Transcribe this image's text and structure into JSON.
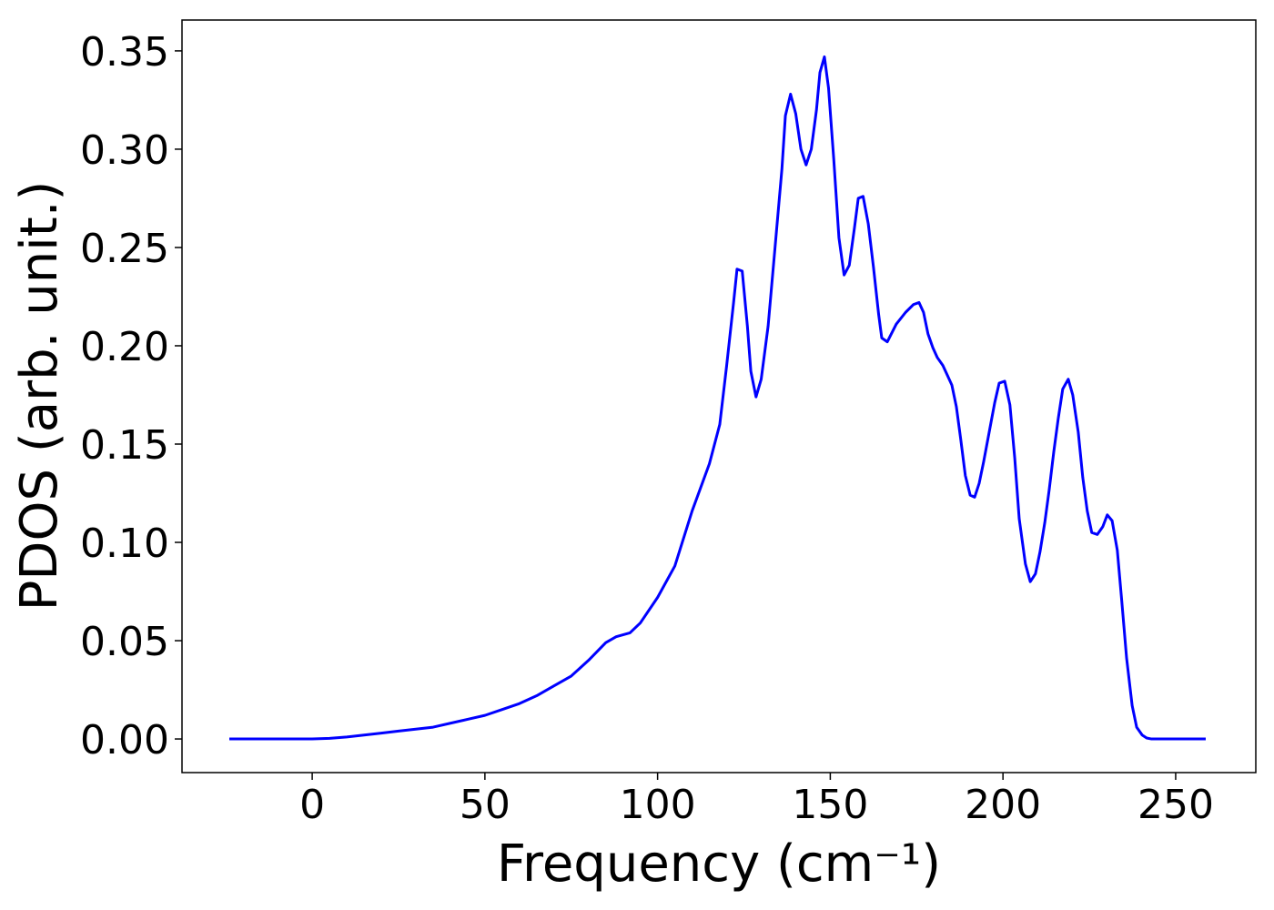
{
  "chart_data": {
    "type": "line",
    "x_label": "Frequency (cm⁻¹)",
    "y_label": "PDOS (arb. unit.)",
    "color": "#0000ff",
    "xlim": [
      -37.7,
      273.2
    ],
    "ylim": [
      -0.0171,
      0.3657
    ],
    "xticks": [
      0,
      50,
      100,
      150,
      200,
      250
    ],
    "yticks": [
      {
        "value": 0,
        "label": "0.00"
      },
      0.05,
      {
        "value": 0.1,
        "label": "0.10"
      },
      0.15,
      {
        "value": 0.2,
        "label": "0.20"
      },
      0.25,
      {
        "value": 0.3,
        "label": "0.30"
      },
      0.35
    ],
    "x": [
      -24,
      0,
      5,
      10,
      15,
      20,
      25,
      30,
      35,
      40,
      45,
      50,
      55,
      60,
      65,
      70,
      75,
      80,
      85,
      88,
      92,
      95,
      100,
      105,
      110,
      115,
      118,
      120,
      122,
      123,
      124.5,
      126,
      127,
      128.5,
      130,
      132,
      134,
      136,
      137,
      138.5,
      140,
      141.5,
      143,
      144.5,
      146,
      147,
      148.3,
      149.5,
      151,
      152.5,
      154,
      155.5,
      157,
      158.1,
      159.5,
      161,
      162.5,
      164,
      164.9,
      166.5,
      169.1,
      171.8,
      174.1,
      175.7,
      177,
      178.3,
      179.7,
      181,
      182.6,
      183.9,
      185.2,
      186.5,
      187.8,
      189.1,
      190.5,
      191.8,
      193.1,
      194.4,
      196,
      197.6,
      198.9,
      200.5,
      202,
      203.4,
      204.7,
      206.5,
      207.9,
      209.4,
      210.7,
      212.1,
      213.4,
      214.7,
      216,
      217.3,
      218.9,
      220.2,
      221.8,
      223.1,
      224.4,
      225.7,
      227.3,
      228.9,
      230.2,
      231.6,
      233.1,
      234.4,
      235.8,
      237.4,
      238.7,
      240.3,
      241.6,
      243,
      258.7
    ],
    "values": [
      0,
      0,
      0.0003,
      0.001,
      0.002,
      0.003,
      0.004,
      0.005,
      0.006,
      0.008,
      0.01,
      0.012,
      0.015,
      0.018,
      0.022,
      0.027,
      0.032,
      0.04,
      0.049,
      0.052,
      0.054,
      0.059,
      0.072,
      0.088,
      0.116,
      0.14,
      0.16,
      0.19,
      0.222,
      0.239,
      0.238,
      0.21,
      0.187,
      0.174,
      0.183,
      0.21,
      0.25,
      0.29,
      0.317,
      0.328,
      0.318,
      0.3,
      0.292,
      0.3,
      0.32,
      0.339,
      0.347,
      0.331,
      0.295,
      0.255,
      0.236,
      0.241,
      0.26,
      0.275,
      0.276,
      0.262,
      0.24,
      0.216,
      0.204,
      0.202,
      0.211,
      0.217,
      0.221,
      0.222,
      0.217,
      0.206,
      0.199,
      0.194,
      0.19,
      0.185,
      0.18,
      0.169,
      0.152,
      0.134,
      0.124,
      0.123,
      0.13,
      0.141,
      0.156,
      0.171,
      0.181,
      0.182,
      0.17,
      0.143,
      0.112,
      0.089,
      0.08,
      0.084,
      0.095,
      0.11,
      0.127,
      0.146,
      0.163,
      0.178,
      0.183,
      0.175,
      0.156,
      0.133,
      0.116,
      0.105,
      0.104,
      0.108,
      0.114,
      0.111,
      0.096,
      0.07,
      0.041,
      0.017,
      0.006,
      0.002,
      0.0005,
      0,
      0
    ]
  }
}
